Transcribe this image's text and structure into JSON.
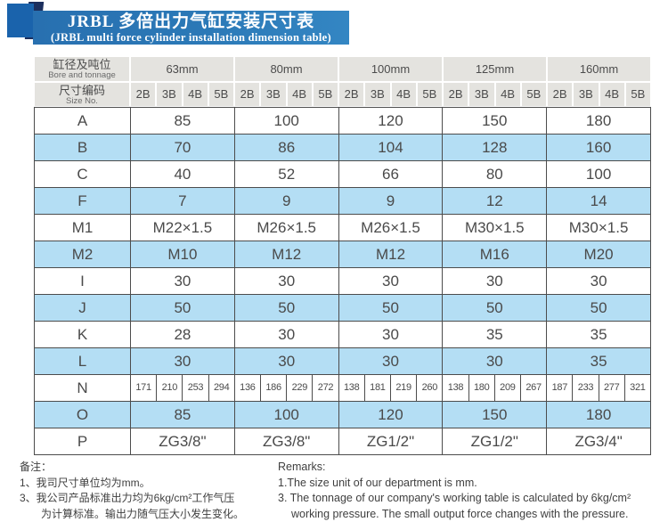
{
  "title": {
    "line1_cn": "JRBL 多倍出力气缸安装尺寸表",
    "line2_en": "(JRBL multi force cylinder installation dimension table)"
  },
  "table": {
    "corner_cn": "缸径及吨位",
    "corner_en": "Bore and tonnage",
    "sizeno_cn": "尺寸编码",
    "sizeno_en": "Size No.",
    "bores": [
      "63mm",
      "80mm",
      "100mm",
      "125mm",
      "160mm"
    ],
    "sub_cols": [
      "2B",
      "3B",
      "4B",
      "5B"
    ],
    "rows": [
      {
        "label": "A",
        "type": "group",
        "shaded": false,
        "values": [
          "85",
          "100",
          "120",
          "150",
          "180"
        ]
      },
      {
        "label": "B",
        "type": "group",
        "shaded": true,
        "values": [
          "70",
          "86",
          "104",
          "128",
          "160"
        ]
      },
      {
        "label": "C",
        "type": "group",
        "shaded": false,
        "values": [
          "40",
          "52",
          "66",
          "80",
          "100"
        ]
      },
      {
        "label": "F",
        "type": "group",
        "shaded": true,
        "values": [
          "7",
          "9",
          "9",
          "12",
          "14"
        ]
      },
      {
        "label": "M1",
        "type": "group",
        "shaded": false,
        "values": [
          "M22×1.5",
          "M26×1.5",
          "M26×1.5",
          "M30×1.5",
          "M30×1.5"
        ]
      },
      {
        "label": "M2",
        "type": "group",
        "shaded": true,
        "values": [
          "M10",
          "M12",
          "M12",
          "M16",
          "M20"
        ]
      },
      {
        "label": "I",
        "type": "group",
        "shaded": false,
        "values": [
          "30",
          "30",
          "30",
          "30",
          "30"
        ]
      },
      {
        "label": "J",
        "type": "group",
        "shaded": true,
        "values": [
          "50",
          "50",
          "50",
          "50",
          "50"
        ]
      },
      {
        "label": "K",
        "type": "group",
        "shaded": false,
        "values": [
          "28",
          "30",
          "30",
          "35",
          "35"
        ]
      },
      {
        "label": "L",
        "type": "group",
        "shaded": true,
        "values": [
          "30",
          "30",
          "30",
          "30",
          "35"
        ]
      },
      {
        "label": "N",
        "type": "each",
        "shaded": false,
        "values": [
          "171",
          "210",
          "253",
          "294",
          "136",
          "186",
          "229",
          "272",
          "138",
          "181",
          "219",
          "260",
          "138",
          "180",
          "209",
          "267",
          "187",
          "233",
          "277",
          "321"
        ]
      },
      {
        "label": "O",
        "type": "group",
        "shaded": true,
        "values": [
          "85",
          "100",
          "120",
          "150",
          "180"
        ]
      },
      {
        "label": "P",
        "type": "group",
        "shaded": false,
        "values": [
          "ZG3/8\"",
          "ZG3/8\"",
          "ZG1/2\"",
          "ZG1/2\"",
          "ZG3/4\""
        ]
      }
    ]
  },
  "notes_cn": {
    "heading": "备注：",
    "items": [
      "1、我司尺寸单位均为mm。",
      "3、我公司产品标准出力均为6kg/cm²工作气压\n为计算标准。输出力随气压大小发生变化。"
    ]
  },
  "notes_en": {
    "heading": "Remarks:",
    "items": [
      "1.The size unit of our department is mm.",
      "3. The tonnage of our company's working table is calculated by 6kg/cm²\nworking pressure. The small output force changes with the pressure."
    ]
  },
  "colors": {
    "banner_blue": "#2b79b7",
    "navy": "#1c2f5e",
    "accent_blue": "#1a63ac",
    "header_gray": "#e4e3df",
    "row_blue": "#b4def4",
    "border": "#4c4c4c",
    "text": "#454545"
  }
}
